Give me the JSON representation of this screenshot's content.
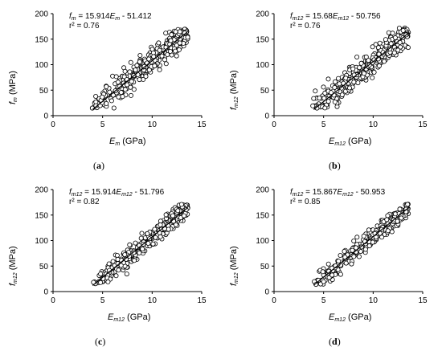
{
  "chart_data": [
    {
      "type": "scatter",
      "panel_label": "a",
      "equation": {
        "f": "f",
        "f_sub": "m",
        "eq_mid": " = 15.914",
        "E": "E",
        "E_sub": "m",
        "eq_tail": " - 51.412"
      },
      "r2": "r² = 0.76",
      "ylabel": {
        "var": "f",
        "sub": "m",
        "unit": " (MPa)"
      },
      "xlabel": {
        "var": "E",
        "sub": "m",
        "unit": " (GPa)"
      },
      "xlim": [
        0,
        15
      ],
      "ylim": [
        0,
        200
      ],
      "xticks": [
        "0",
        "5",
        "10",
        "15"
      ],
      "yticks": [
        "0",
        "50",
        "100",
        "150",
        "200"
      ],
      "trend": {
        "slope": 15.914,
        "intercept": -51.412,
        "x_range": [
          4,
          13.6
        ]
      },
      "seed": 11,
      "noise": 20
    },
    {
      "type": "scatter",
      "panel_label": "b",
      "equation": {
        "f": "f",
        "f_sub": "m12",
        "eq_mid": " = 15.68",
        "E": "E",
        "E_sub": "m12",
        "eq_tail": " - 50.756"
      },
      "r2": "r² = 0.76",
      "ylabel": {
        "var": "f",
        "sub": "m12",
        "unit": " (MPa)"
      },
      "xlabel": {
        "var": "E",
        "sub": "m12",
        "unit": " (GPa)"
      },
      "xlim": [
        0,
        15
      ],
      "ylim": [
        0,
        200
      ],
      "xticks": [
        "0",
        "5",
        "10",
        "15"
      ],
      "yticks": [
        "0",
        "50",
        "100",
        "150",
        "200"
      ],
      "trend": {
        "slope": 15.68,
        "intercept": -50.756,
        "x_range": [
          4,
          13.6
        ]
      },
      "seed": 23,
      "noise": 20
    },
    {
      "type": "scatter",
      "panel_label": "c",
      "equation": {
        "f": "f",
        "f_sub": "m12",
        "eq_mid": " = 15.914",
        "E": "E",
        "E_sub": "m12",
        "eq_tail": " - 51.796"
      },
      "r2": "r² = 0.82",
      "ylabel": {
        "var": "f",
        "sub": "m12",
        "unit": " (MPa)"
      },
      "xlabel": {
        "var": "E",
        "sub": "m12",
        "unit": " (GPa)"
      },
      "xlim": [
        0,
        15
      ],
      "ylim": [
        0,
        200
      ],
      "xticks": [
        "0",
        "5",
        "10",
        "15"
      ],
      "yticks": [
        "0",
        "50",
        "100",
        "150",
        "200"
      ],
      "trend": {
        "slope": 15.914,
        "intercept": -51.796,
        "x_range": [
          4,
          13.6
        ]
      },
      "seed": 37,
      "noise": 15
    },
    {
      "type": "scatter",
      "panel_label": "d",
      "equation": {
        "f": "f",
        "f_sub": "m12",
        "eq_mid": " = 15.867",
        "E": "E",
        "E_sub": "m12",
        "eq_tail": " - 50.953"
      },
      "r2": "r² = 0.85",
      "ylabel": {
        "var": "f",
        "sub": "m12",
        "unit": " (MPa)"
      },
      "xlabel": {
        "var": "E",
        "sub": "m12",
        "unit": " (GPa)"
      },
      "xlim": [
        0,
        15
      ],
      "ylim": [
        0,
        200
      ],
      "xticks": [
        "0",
        "5",
        "10",
        "15"
      ],
      "yticks": [
        "0",
        "50",
        "100",
        "150",
        "200"
      ],
      "trend": {
        "slope": 15.867,
        "intercept": -50.953,
        "x_range": [
          4,
          13.6
        ]
      },
      "seed": 53,
      "noise": 13
    }
  ]
}
